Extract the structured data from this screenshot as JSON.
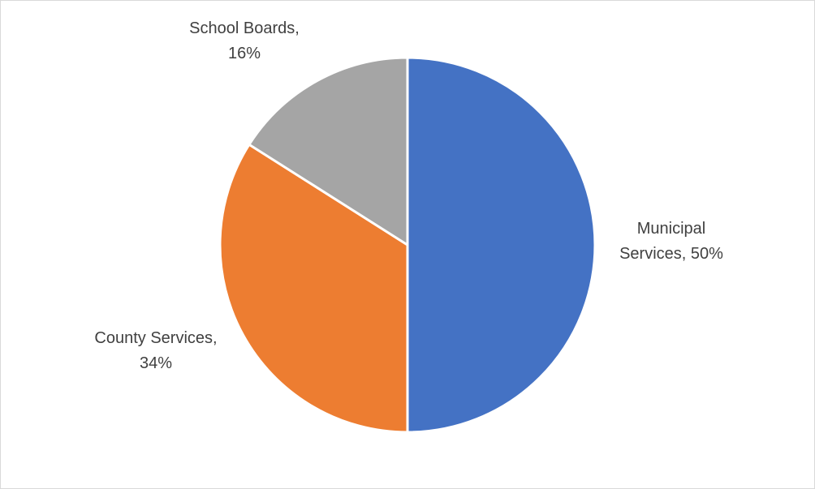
{
  "chart_data": {
    "type": "pie",
    "title": "",
    "start_angle": "12 o'clock",
    "direction": "clockwise",
    "slice_border_color": "#ffffff",
    "legend": "none",
    "slices": [
      {
        "name": "Municipal Services",
        "value": 50,
        "color": "#4472C4",
        "label_lines": [
          "Municipal",
          "Services, 50%"
        ]
      },
      {
        "name": "County Services",
        "value": 34,
        "color": "#ED7D31",
        "label_lines": [
          "County Services,",
          "34%"
        ]
      },
      {
        "name": "School Boards",
        "value": 16,
        "color": "#A5A5A5",
        "label_lines": [
          "School Boards,",
          "16%"
        ]
      }
    ]
  }
}
